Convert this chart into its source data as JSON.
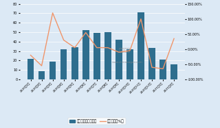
{
  "categories": [
    "2020年1月",
    "2020年2月",
    "2020年3月",
    "2020年4月",
    "2020年5月",
    "2020年6月",
    "2020年7月",
    "2020年8月",
    "2020年9月",
    "2020年10月",
    "2020年11月",
    "2020年12月",
    "2021年1月",
    "2021年2月"
  ],
  "bar_values": [
    22,
    9,
    19,
    32,
    34,
    52,
    49,
    50,
    42,
    32,
    71,
    33,
    21,
    16
  ],
  "line_values": [
    -20,
    -55,
    120,
    30,
    5,
    55,
    5,
    5,
    -10,
    -5,
    100,
    -60,
    -65,
    35
  ],
  "bar_color": "#2e6e8e",
  "line_color": "#f0956a",
  "bg_color": "#dce9f5",
  "plot_bg": "#dce9f5",
  "ylim_left": [
    0,
    80
  ],
  "ylim_right": [
    -100,
    150
  ],
  "yticks_left": [
    0,
    10,
    20,
    30,
    40,
    50,
    60,
    70,
    80
  ],
  "yticks_right": [
    -100.0,
    -50.0,
    0.0,
    50.0,
    100.0,
    150.0
  ],
  "legend_bar": "总销售额（百万元）",
  "legend_line": "环比增长（%）",
  "watermark_line1": "观研天下",
  "watermark_line2": "www.chinabagao.com"
}
